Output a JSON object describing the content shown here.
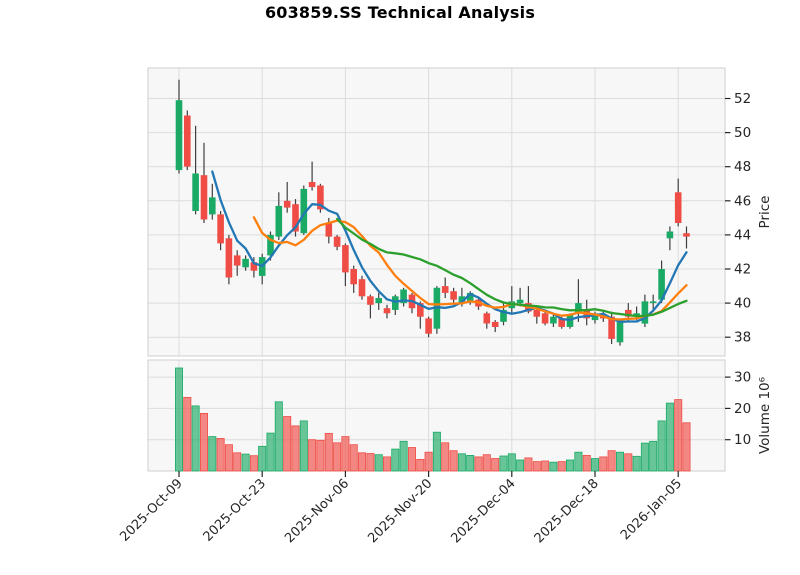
{
  "chart_data": {
    "type": "candlestick",
    "title": "603859.SS Technical Analysis",
    "panels": [
      "price-with-moving-averages",
      "volume"
    ],
    "x_axis": {
      "tick_labels": [
        "2025-Oct-09",
        "2025-Oct-23",
        "2025-Nov-06",
        "2025-Nov-20",
        "2025-Dec-04",
        "2025-Dec-18",
        "2026-Jan-05"
      ],
      "tick_bar_indices": [
        0,
        10,
        20,
        30,
        40,
        50,
        60
      ],
      "label_rotation_deg": 45
    },
    "price_axis": {
      "label": "Price",
      "side": "right",
      "tick_labels": [
        52,
        50,
        48,
        46,
        44,
        42,
        40,
        38
      ],
      "approx_range": [
        37,
        54
      ]
    },
    "volume_axis": {
      "label": "Volume 10⁶",
      "side": "right",
      "unit": "millions",
      "tick_labels": [
        30,
        20,
        10
      ],
      "approx_range": [
        0,
        35.5
      ]
    },
    "num_bars": 62,
    "series": {
      "open": [
        47.8,
        51.0,
        45.4,
        47.5,
        45.2,
        45.2,
        43.8,
        42.8,
        42.1,
        42.4,
        41.6,
        42.8,
        43.9,
        46.0,
        45.8,
        44.1,
        47.1,
        46.9,
        44.7,
        43.9,
        43.4,
        42.0,
        41.4,
        40.4,
        40.0,
        39.7,
        39.6,
        40.0,
        40.5,
        40.0,
        39.1,
        38.5,
        41.0,
        40.7,
        40.0,
        40.1,
        40.2,
        39.4,
        38.9,
        38.9,
        39.7,
        40.0,
        40.0,
        39.6,
        39.4,
        38.8,
        39.1,
        38.6,
        39.4,
        39.6,
        39.0,
        39.3,
        39.2,
        37.7,
        39.6,
        39.2,
        38.8,
        40.0,
        40.2,
        43.8,
        46.5,
        44.1
      ],
      "high": [
        53.1,
        51.3,
        50.4,
        49.4,
        47.0,
        45.4,
        44.0,
        43.1,
        42.8,
        42.7,
        42.9,
        44.2,
        46.5,
        47.1,
        46.1,
        46.9,
        48.3,
        47.0,
        45.0,
        44.0,
        43.5,
        42.2,
        41.6,
        40.5,
        40.6,
        39.9,
        40.5,
        40.9,
        40.6,
        40.1,
        39.2,
        41.0,
        41.5,
        40.9,
        40.9,
        40.7,
        40.3,
        39.5,
        39.0,
        40.0,
        41.0,
        40.9,
        41.0,
        39.7,
        39.5,
        39.3,
        39.2,
        39.4,
        41.4,
        40.2,
        39.5,
        39.6,
        39.5,
        39.1,
        40.0,
        39.8,
        40.5,
        40.5,
        42.5,
        44.5,
        47.3,
        44.5
      ],
      "low": [
        47.6,
        47.8,
        45.2,
        44.7,
        44.9,
        43.1,
        41.1,
        41.6,
        41.9,
        41.5,
        41.1,
        42.5,
        43.7,
        45.3,
        43.9,
        44.0,
        46.6,
        45.3,
        43.5,
        43.1,
        41.0,
        40.6,
        40.2,
        39.1,
        39.6,
        39.1,
        39.3,
        39.8,
        39.4,
        38.5,
        38.0,
        38.2,
        40.3,
        40.0,
        39.8,
        39.9,
        39.6,
        38.5,
        38.3,
        38.7,
        39.4,
        39.8,
        39.4,
        38.8,
        38.7,
        38.6,
        38.5,
        38.5,
        38.9,
        38.7,
        38.8,
        38.9,
        37.6,
        37.5,
        38.9,
        39.0,
        38.6,
        39.6,
        40.0,
        43.1,
        44.5,
        43.2
      ],
      "close": [
        51.9,
        48.0,
        47.6,
        44.9,
        46.2,
        43.5,
        41.5,
        42.2,
        42.6,
        41.9,
        42.7,
        44.0,
        45.7,
        45.6,
        44.2,
        46.7,
        46.8,
        45.5,
        43.9,
        43.3,
        41.8,
        41.1,
        40.4,
        39.9,
        40.3,
        39.4,
        40.4,
        40.8,
        39.7,
        39.2,
        38.2,
        40.9,
        40.6,
        40.2,
        40.4,
        40.6,
        39.8,
        38.8,
        38.6,
        39.6,
        40.1,
        40.2,
        39.5,
        39.2,
        38.8,
        39.2,
        38.6,
        39.3,
        40.0,
        39.1,
        39.4,
        39.1,
        37.9,
        39.0,
        39.2,
        39.4,
        40.1,
        40.1,
        42.0,
        44.2,
        44.7,
        43.9
      ],
      "volume_millions": [
        32.9,
        23.5,
        20.8,
        18.4,
        11.0,
        10.4,
        8.4,
        5.8,
        5.4,
        4.9,
        7.9,
        12.1,
        22.1,
        17.4,
        14.4,
        16.0,
        10.0,
        9.8,
        12.0,
        9.0,
        11.0,
        8.4,
        5.8,
        5.6,
        5.2,
        4.5,
        7.0,
        9.5,
        7.5,
        3.7,
        6.0,
        12.4,
        9.0,
        6.5,
        5.5,
        5.0,
        4.5,
        5.2,
        4.0,
        4.8,
        5.5,
        3.5,
        4.2,
        3.0,
        3.2,
        2.8,
        3.0,
        3.5,
        6.0,
        5.0,
        4.0,
        4.5,
        6.5,
        6.0,
        5.5,
        4.7,
        8.9,
        9.5,
        16.0,
        21.7,
        22.8,
        15.4
      ]
    },
    "moving_averages": [
      {
        "window": 5,
        "color": "#2277b4"
      },
      {
        "window": 10,
        "color": "#ff7f0e"
      },
      {
        "window": 20,
        "color": "#2ca02c"
      }
    ],
    "colors": {
      "up": "#1aaa66",
      "down": "#ef4c45",
      "wick": "#3f3f3f",
      "grid": "#dcdcdc",
      "panel_edge": "#cfcfcf",
      "plot_bg": "#f7f7f7",
      "text": "#262626"
    }
  }
}
